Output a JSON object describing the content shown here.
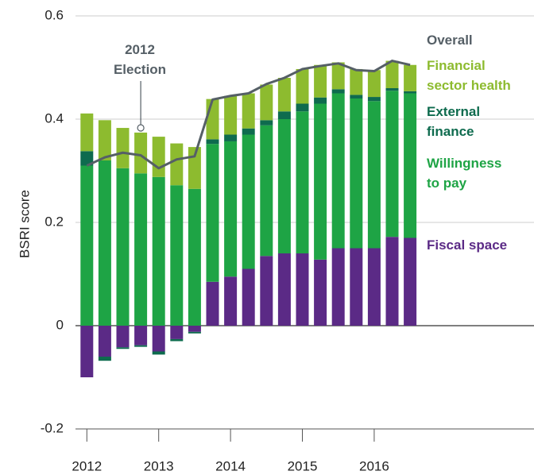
{
  "chart_data": {
    "type": "stacked_bar",
    "y_label": "BSRI score",
    "annotation": "2012 Election",
    "categories": [
      "2012",
      null,
      null,
      null,
      "2013",
      null,
      null,
      null,
      "2014",
      null,
      null,
      null,
      "2015",
      null,
      null,
      null,
      "2016",
      null,
      null
    ],
    "ylim": [
      -0.2,
      0.6
    ],
    "yticks": [
      -0.2,
      0,
      0.2,
      0.4,
      0.6
    ],
    "grid": true,
    "series": [
      {
        "name": "Fiscal space",
        "color": "#5b2a86",
        "values": [
          -0.1,
          -0.06,
          -0.042,
          -0.038,
          -0.05,
          -0.026,
          -0.012,
          0.085,
          0.095,
          0.11,
          0.135,
          0.14,
          0.14,
          0.128,
          0.15,
          0.15,
          0.15,
          0.172,
          0.17
        ]
      },
      {
        "name": "Willingness to pay",
        "color": "#1ea445",
        "values": [
          0.31,
          0.32,
          0.305,
          0.295,
          0.288,
          0.272,
          0.265,
          0.267,
          0.262,
          0.26,
          0.253,
          0.26,
          0.275,
          0.302,
          0.3,
          0.29,
          0.285,
          0.283,
          0.28
        ]
      },
      {
        "name": "External finance",
        "color": "#0e6b4e",
        "values": [
          0.028,
          -0.008,
          -0.003,
          -0.003,
          -0.006,
          -0.004,
          -0.003,
          0.009,
          0.013,
          0.012,
          0.01,
          0.015,
          0.015,
          0.012,
          0.008,
          0.007,
          0.008,
          0.005,
          0.004
        ]
      },
      {
        "name": "Financial sector health",
        "color": "#8dbb2f",
        "values": [
          0.073,
          0.078,
          0.078,
          0.079,
          0.078,
          0.081,
          0.081,
          0.078,
          0.075,
          0.068,
          0.069,
          0.065,
          0.067,
          0.063,
          0.052,
          0.05,
          0.052,
          0.053,
          0.051
        ]
      },
      {
        "name": "Overall",
        "color": "#555f66",
        "type": "line",
        "values": [
          0.31,
          0.326,
          0.335,
          0.33,
          0.305,
          0.322,
          0.328,
          0.438,
          0.445,
          0.45,
          0.468,
          0.48,
          0.497,
          0.503,
          0.508,
          0.495,
          0.493,
          0.513,
          0.505
        ]
      }
    ]
  }
}
